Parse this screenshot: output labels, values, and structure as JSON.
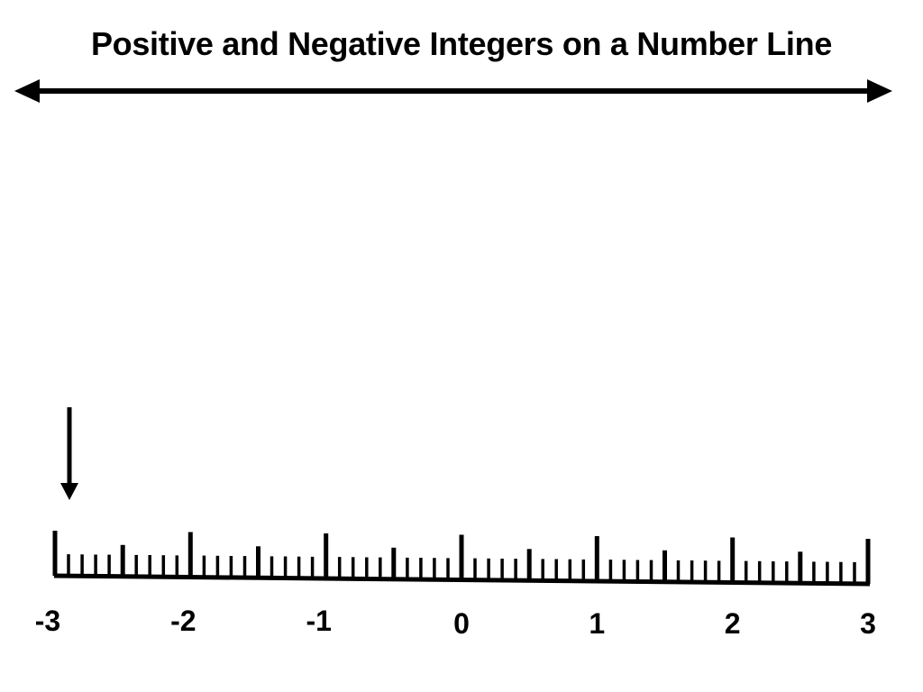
{
  "title": "Positive and Negative Integers on a Number Line",
  "colors": {
    "ink": "#000000",
    "background": "#ffffff"
  },
  "number_line": {
    "min": -3,
    "max": 3,
    "labels": [
      "-3",
      "-2",
      "-1",
      "0",
      "1",
      "2",
      "3"
    ],
    "minor_divisions_per_half_unit": 4,
    "pointer_value": -3
  },
  "arrow": {
    "direction": "both-ways"
  }
}
